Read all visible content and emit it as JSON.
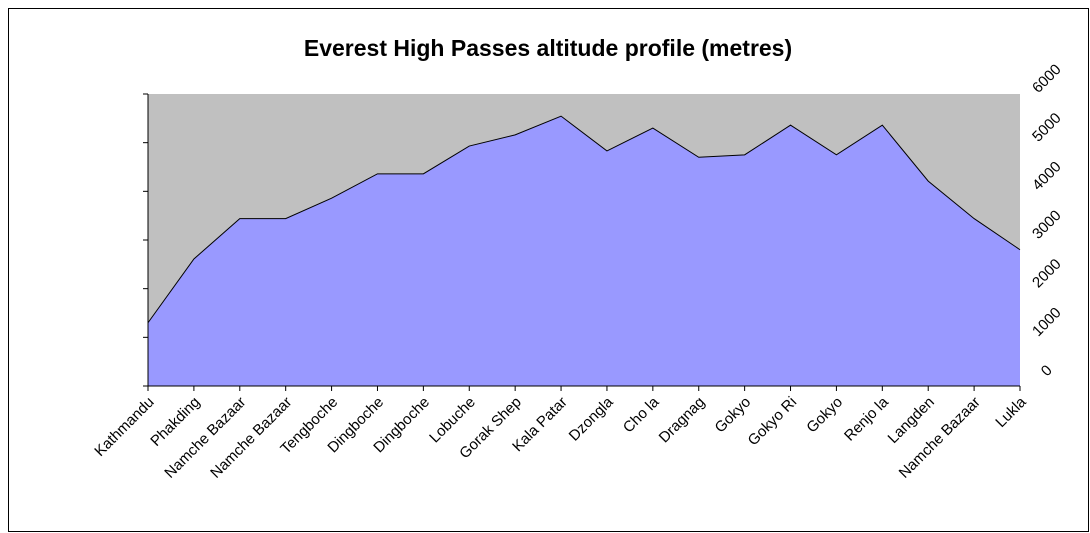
{
  "chart_data": {
    "type": "area",
    "title": "Everest High Passes altitude profile (metres)",
    "categories": [
      "Kathmandu",
      "Phakding",
      "Namche Bazaar",
      "Namche Bazaar",
      "Tengboche",
      "Dingboche",
      "Dingboche",
      "Lobuche",
      "Gorak Shep",
      "Kala Patar",
      "Dzongla",
      "Cho la",
      "Dragnag",
      "Gokyo",
      "Gokyo Ri",
      "Gokyo",
      "Renjo la",
      "Langden",
      "Namche Bazaar",
      "Lukla"
    ],
    "values": [
      1300,
      2610,
      3440,
      3440,
      3860,
      4360,
      4360,
      4930,
      5160,
      5545,
      4830,
      5300,
      4700,
      4750,
      5360,
      4750,
      5360,
      4210,
      3440,
      2800
    ],
    "color": "#9999ff",
    "plot_background": "#c0c0c0",
    "ylim": [
      0,
      6000
    ],
    "yticks": [
      0,
      1000,
      2000,
      3000,
      4000,
      5000,
      6000
    ]
  }
}
